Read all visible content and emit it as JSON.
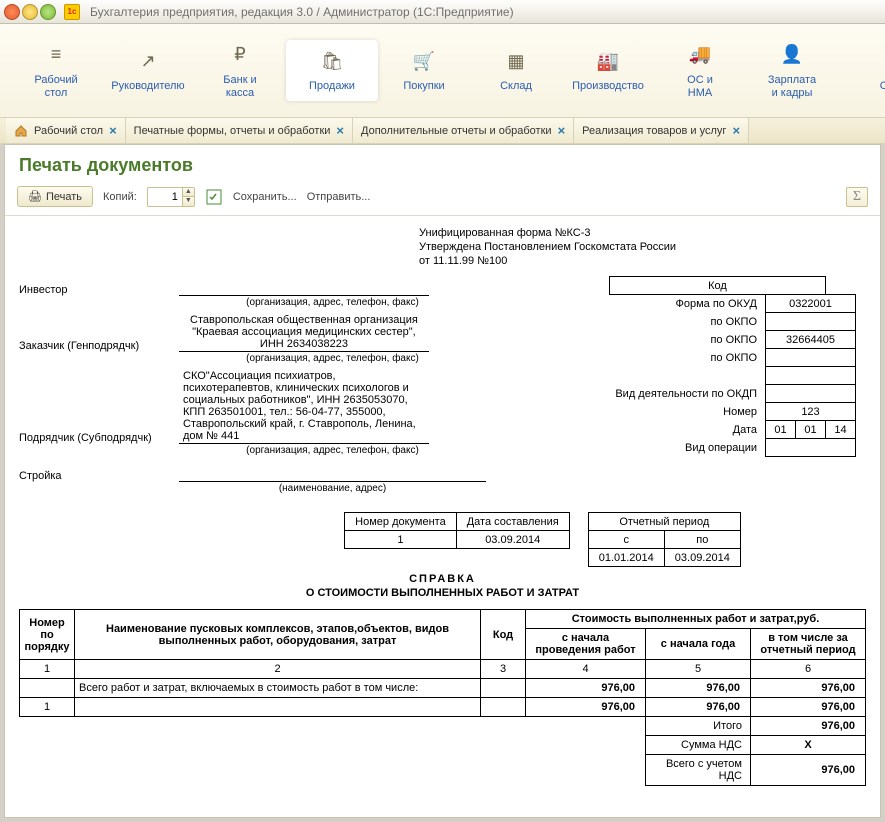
{
  "window": {
    "title": "Бухгалтерия предприятия, редакция 3.0 / Администратор  (1С:Предприятие)"
  },
  "mainnav": {
    "items": [
      {
        "label": "Рабочий\nстол",
        "glyph": "≡"
      },
      {
        "label": "Руководителю",
        "glyph": "↗"
      },
      {
        "label": "Банк и\nкасса",
        "glyph": "₽"
      },
      {
        "label": "Продажи",
        "glyph": "🛍",
        "active": true
      },
      {
        "label": "Покупки",
        "glyph": "🛒"
      },
      {
        "label": "Склад",
        "glyph": "▦"
      },
      {
        "label": "Производство",
        "glyph": "🏭"
      },
      {
        "label": "ОС и\nНМА",
        "glyph": "🚚"
      },
      {
        "label": "Зарплата\nи кадры",
        "glyph": "👤"
      },
      {
        "label": "О",
        "glyph": ""
      }
    ]
  },
  "tabs": [
    {
      "label": "Рабочий стол",
      "hasHome": true
    },
    {
      "label": "Печатные формы, отчеты и обработки"
    },
    {
      "label": "Дополнительные отчеты и обработки"
    },
    {
      "label": "Реализация товаров и услуг"
    }
  ],
  "page": {
    "title": "Печать документов",
    "toolbar": {
      "print": "Печать",
      "copiesLabel": "Копий:",
      "copiesValue": "1",
      "save": "Сохранить...",
      "send": "Отправить..."
    }
  },
  "form": {
    "header": {
      "line1": "Унифицированная форма №КС-3",
      "line2": "Утверждена Постановлением Госкомстата России",
      "line3": "от 11.11.99 №100"
    },
    "kod": {
      "kodHeader": "Код",
      "rows": [
        {
          "label": "Форма по ОКУД",
          "value": "0322001"
        },
        {
          "label": "по ОКПО",
          "value": ""
        },
        {
          "label": "по ОКПО",
          "value": "32664405"
        },
        {
          "label": "по ОКПО",
          "value": ""
        },
        {
          "label": "",
          "value": ""
        },
        {
          "label": "Вид деятельности по ОКДП",
          "value": ""
        },
        {
          "label": "Номер",
          "value": "123"
        }
      ],
      "dateLabel": "Дата",
      "date": {
        "d": "01",
        "m": "01",
        "y": "14"
      },
      "opLabel": "Вид операции"
    },
    "fields": {
      "investorLabel": "Инвестор",
      "investorValue": "",
      "subOrg": "(организация, адрес, телефон, факс)",
      "zakazchikLabel": "Заказчик (Генподрядчк)",
      "zakazchikValue": "Ставропольская общественная организация \"Краевая ассоциация медицинских сестер\", ИНН 2634038223",
      "podryadLabel": "Подрядчик (Субподрядчк)",
      "podryadValue": "СКО\"Ассоциация психиатров, психотерапевтов, клинических психологов и социальных работников\", ИНН 2635053070, КПП 263501001, тел.: 56-04-77, 355000, Ставропольский край, г. Ставрополь, Ленина, дом № 441",
      "stroikaLabel": "Стройка",
      "stroikaValue": "",
      "subName": "(наименование, адрес)"
    },
    "docnum": {
      "h1": "Номер документа",
      "h2": "Дата составления",
      "v1": "1",
      "v2": "03.09.2014",
      "periodHeader": "Отчетный период",
      "periodFrom": "с",
      "periodTo": "по",
      "periodFromV": "01.01.2014",
      "periodToV": "03.09.2014"
    },
    "spravka": {
      "title": "СПРАВКА",
      "sub": "О СТОИМОСТИ ВЫПОЛНЕННЫХ РАБОТ И ЗАТРАТ"
    },
    "table": {
      "headers": {
        "col1": "Номер по порядку",
        "col2": "Наименование пусковых комплексов, этапов,объектов, видов выполненных работ, оборудования, затрат",
        "col3": "Код",
        "costHeader": "Стоимость выполненных работ и затрат,руб.",
        "col4": "с начала проведения работ",
        "col5": "с начала года",
        "col6": "в том числе за отчетный период"
      },
      "numRow": {
        "c1": "1",
        "c2": "2",
        "c3": "3",
        "c4": "4",
        "c5": "5",
        "c6": "6"
      },
      "rows": [
        {
          "num": "",
          "name": "Всего работ и затрат, включаемых в стоимость работ в том числе:",
          "code": "",
          "v4": "976,00",
          "v5": "976,00",
          "v6": "976,00"
        },
        {
          "num": "1",
          "name": "",
          "code": "",
          "v4": "976,00",
          "v5": "976,00",
          "v6": "976,00"
        }
      ],
      "totals": {
        "itogoLabel": "Итого",
        "itogoV": "976,00",
        "ndsLabel": "Сумма НДС",
        "ndsV": "Х",
        "vsegoLabel": "Всего с учетом НДС",
        "vsegoV": "976,00"
      }
    }
  }
}
